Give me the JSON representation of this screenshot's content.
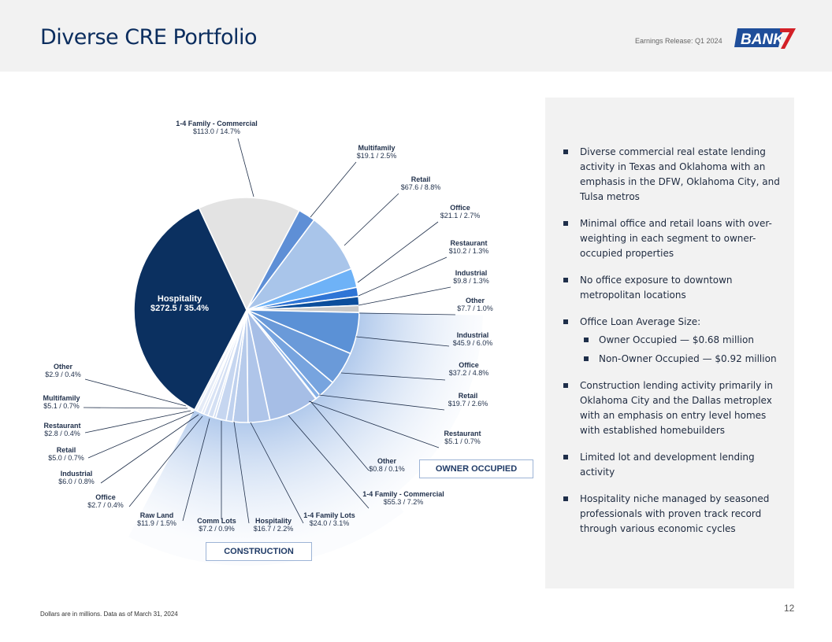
{
  "header": {
    "title": "Diverse CRE Portfolio",
    "release": "Earnings Release: Q1 2024",
    "logo_text": "BANK7",
    "colors": {
      "title": "#0b2d5e",
      "logo_blue": "#1f4e9a",
      "logo_red": "#d32027"
    }
  },
  "chart_data": {
    "type": "pie",
    "units": "Dollars in millions",
    "slices": [
      {
        "segment": "",
        "name": "1-4 Family - Commercial",
        "value": 113.0,
        "percent": "14.7%",
        "label": "$113.0  /  14.7%",
        "color": "#e3e3e3"
      },
      {
        "segment": "",
        "name": "Multifamily",
        "value": 19.1,
        "percent": "2.5%",
        "label": "$19.1  /  2.5%",
        "color": "#5e8fd6"
      },
      {
        "segment": "",
        "name": "Retail",
        "value": 67.6,
        "percent": "8.8%",
        "label": "$67.6  /  8.8%",
        "color": "#a9c5ea"
      },
      {
        "segment": "",
        "name": "Office",
        "value": 21.1,
        "percent": "2.7%",
        "label": "$21.1  /  2.7%",
        "color": "#6eb2f7"
      },
      {
        "segment": "",
        "name": "Restaurant",
        "value": 10.2,
        "percent": "1.3%",
        "label": "$10.2  /  1.3%",
        "color": "#2f75d6"
      },
      {
        "segment": "",
        "name": "Industrial",
        "value": 9.8,
        "percent": "1.3%",
        "label": "$9.8  /  1.3%",
        "color": "#0c4e9c"
      },
      {
        "segment": "",
        "name": "Other",
        "value": 7.7,
        "percent": "1.0%",
        "label": "$7.7  /  1.0%",
        "color": "#c9c9c9"
      },
      {
        "segment": "OWNER OCCUPIED",
        "name": "Industrial",
        "value": 45.9,
        "percent": "6.0%",
        "label": "$45.9  /  6.0%",
        "color": "#5b91d6"
      },
      {
        "segment": "OWNER OCCUPIED",
        "name": "Office",
        "value": 37.2,
        "percent": "4.8%",
        "label": "$37.2  /  4.8%",
        "color": "#6a9ad9"
      },
      {
        "segment": "OWNER OCCUPIED",
        "name": "Retail",
        "value": 19.7,
        "percent": "2.6%",
        "label": "$19.7  /  2.6%",
        "color": "#77a4df"
      },
      {
        "segment": "OWNER OCCUPIED",
        "name": "Restaurant",
        "value": 5.1,
        "percent": "0.7%",
        "label": "$5.1  /  0.7%",
        "color": "#86b0e6"
      },
      {
        "segment": "OWNER OCCUPIED",
        "name": "Other",
        "value": 0.8,
        "percent": "0.1%",
        "label": "$0.8  / 0.1%",
        "color": "#94b9ea"
      },
      {
        "segment": "CONSTRUCTION",
        "name": "1-4 Family - Commercial",
        "value": 55.3,
        "percent": "7.2%",
        "label": "$55.3  / 7.2%",
        "color": "#a6bee6"
      },
      {
        "segment": "CONSTRUCTION",
        "name": "1-4 Family Lots",
        "value": 24.0,
        "percent": "3.1%",
        "label": "$24.0  / 3.1%",
        "color": "#afc5e9"
      },
      {
        "segment": "CONSTRUCTION",
        "name": "Hospitality",
        "value": 16.7,
        "percent": "2.2%",
        "label": "$16.7  / 2.2%",
        "color": "#b7cbeb"
      },
      {
        "segment": "CONSTRUCTION",
        "name": "Comm Lots",
        "value": 7.2,
        "percent": "0.9%",
        "label": "$7.2  / 0.9%",
        "color": "#bfd1ee"
      },
      {
        "segment": "CONSTRUCTION",
        "name": "Raw Land",
        "value": 11.9,
        "percent": "1.5%",
        "label": "$11.9  /  1.5%",
        "color": "#c6d6f0"
      },
      {
        "segment": "CONSTRUCTION",
        "name": "Office",
        "value": 2.7,
        "percent": "0.4%",
        "label": "$2.7  /  0.4%",
        "color": "#cddbf2"
      },
      {
        "segment": "CONSTRUCTION",
        "name": "Industrial",
        "value": 6.0,
        "percent": "0.8%",
        "label": "$6.0  /  0.8%",
        "color": "#d3dff3"
      },
      {
        "segment": "CONSTRUCTION",
        "name": "Retail",
        "value": 5.0,
        "percent": "0.7%",
        "label": "$5.0  /  0.7%",
        "color": "#d9e3f5"
      },
      {
        "segment": "CONSTRUCTION",
        "name": "Restaurant",
        "value": 2.8,
        "percent": "0.4%",
        "label": "$2.8  / 0.4%",
        "color": "#dfe7f6"
      },
      {
        "segment": "CONSTRUCTION",
        "name": "Multifamily",
        "value": 5.1,
        "percent": "0.7%",
        "label": "$5.1  /  0.7%",
        "color": "#e4ebf7"
      },
      {
        "segment": "CONSTRUCTION",
        "name": "Other",
        "value": 2.9,
        "percent": "0.4%",
        "label": "$2.9  / 0.4%",
        "color": "#e9eff9"
      },
      {
        "segment": "",
        "name": "Hospitality",
        "value": 272.5,
        "percent": "35.4%",
        "label": "$272.5  /  35.4%",
        "color": "#0b3060"
      }
    ],
    "segment_labels": {
      "owner_occupied": "OWNER OCCUPIED",
      "construction": "CONSTRUCTION"
    }
  },
  "panel": {
    "bullets": [
      "Diverse commercial real estate lending activity in Texas and Oklahoma with an emphasis in the DFW, Oklahoma City, and Tulsa metros",
      "Minimal office and retail loans with over-weighting in each segment to owner-occupied properties",
      "No office exposure to downtown metropolitan locations",
      "Office Loan Average Size:",
      "Construction lending activity primarily in Oklahoma City and the Dallas metroplex with an emphasis on entry level homes with established homebuilders",
      "Limited lot and development lending activity",
      "Hospitality niche managed by seasoned professionals with proven track record through various economic cycles"
    ],
    "sub_bullets": [
      "Owner Occupied — $0.68 million",
      "Non-Owner Occupied — $0.92 million"
    ]
  },
  "footer": {
    "footnote": "Dollars are  in millions.  Data as of March  31, 2024",
    "page_number": "12"
  }
}
